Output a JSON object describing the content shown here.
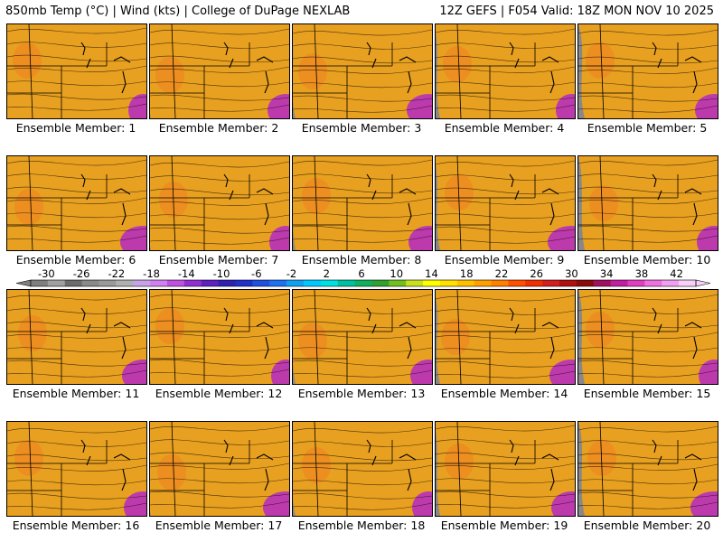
{
  "header": {
    "left": "850mb Temp (°C) | Wind (kts) | College of DuPage NEXLAB",
    "right": "12Z GEFS | F054 Valid: 18Z MON NOV 10 2025"
  },
  "panels": [
    {
      "label": "Ensemble Member: 1"
    },
    {
      "label": "Ensemble Member: 2"
    },
    {
      "label": "Ensemble Member: 3"
    },
    {
      "label": "Ensemble Member: 4"
    },
    {
      "label": "Ensemble Member: 5"
    },
    {
      "label": "Ensemble Member: 6"
    },
    {
      "label": "Ensemble Member: 7"
    },
    {
      "label": "Ensemble Member: 8"
    },
    {
      "label": "Ensemble Member: 9"
    },
    {
      "label": "Ensemble Member: 10"
    },
    {
      "label": "Ensemble Member: 11"
    },
    {
      "label": "Ensemble Member: 12"
    },
    {
      "label": "Ensemble Member: 13"
    },
    {
      "label": "Ensemble Member: 14"
    },
    {
      "label": "Ensemble Member: 15"
    },
    {
      "label": "Ensemble Member: 16"
    },
    {
      "label": "Ensemble Member: 17"
    },
    {
      "label": "Ensemble Member: 18"
    },
    {
      "label": "Ensemble Member: 19"
    },
    {
      "label": "Ensemble Member: 20"
    }
  ],
  "colorbar": {
    "labels": [
      "-30",
      "-26",
      "-22",
      "-18",
      "-14",
      "-10",
      "-6",
      "-2",
      "2",
      "6",
      "10",
      "14",
      "18",
      "22",
      "26",
      "30",
      "34",
      "38",
      "42"
    ],
    "colors": [
      "#7f7f7f",
      "#a0a0a0",
      "#6c6c6c",
      "#8a8a8a",
      "#9a9a9a",
      "#b0b0b0",
      "#c8a2e8",
      "#d080f0",
      "#c050e0",
      "#9030d0",
      "#6020c0",
      "#3020b0",
      "#2030c8",
      "#2050e0",
      "#2070f0",
      "#10a0f0",
      "#00c8ff",
      "#00e0e0",
      "#00c0a0",
      "#10b060",
      "#30a030",
      "#70c020",
      "#c8e020",
      "#ffff00",
      "#ffe000",
      "#ffc000",
      "#ffa000",
      "#ff8000",
      "#ff5000",
      "#f03000",
      "#d02020",
      "#b01010",
      "#8a0a0a",
      "#a01060",
      "#c020a0",
      "#e040c0",
      "#f070e0",
      "#f0a0f0",
      "#f8d0f8"
    ]
  }
}
